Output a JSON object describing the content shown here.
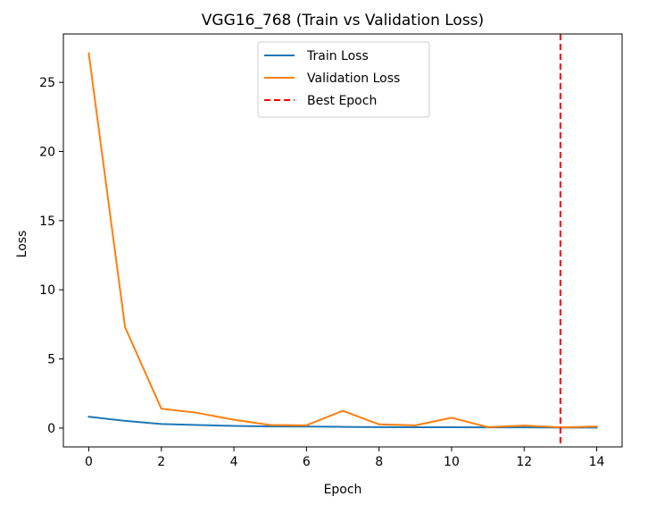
{
  "chart_data": {
    "type": "line",
    "title": "VGG16_768 (Train vs Validation Loss)",
    "xlabel": "Epoch",
    "ylabel": "Loss",
    "xlim": [
      -0.7,
      14.7
    ],
    "ylim": [
      -1.36,
      28.5
    ],
    "xticks": [
      0,
      2,
      4,
      6,
      8,
      10,
      12,
      14
    ],
    "yticks": [
      0,
      5,
      10,
      15,
      20,
      25
    ],
    "x": [
      0,
      1,
      2,
      3,
      4,
      5,
      6,
      7,
      8,
      9,
      10,
      11,
      12,
      13,
      14
    ],
    "grid": false,
    "legend_position": "upper center",
    "series": [
      {
        "name": "Train Loss",
        "color": "#1f77b4",
        "style": "solid",
        "values": [
          0.82,
          0.52,
          0.3,
          0.22,
          0.16,
          0.12,
          0.11,
          0.09,
          0.07,
          0.06,
          0.06,
          0.05,
          0.05,
          0.04,
          0.04
        ]
      },
      {
        "name": "Validation Loss",
        "color": "#ff7f0e",
        "style": "solid",
        "values": [
          27.1,
          7.3,
          1.4,
          1.1,
          0.6,
          0.22,
          0.2,
          1.25,
          0.27,
          0.2,
          0.75,
          0.07,
          0.18,
          0.05,
          0.12
        ]
      }
    ],
    "vlines": [
      {
        "name": "Best Epoch",
        "x": 13,
        "color": "#ff0000",
        "style": "dashed"
      }
    ]
  }
}
